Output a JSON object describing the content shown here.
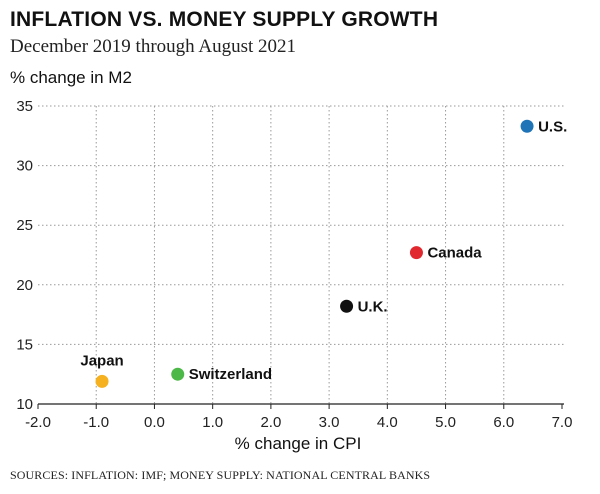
{
  "chart_data": {
    "type": "scatter",
    "title": "INFLATION VS. MONEY SUPPLY GROWTH",
    "subtitle": "December 2019 through August 2021",
    "ylabel": "% change in M2",
    "xlabel": "% change in CPI",
    "source": "SOURCES: INFLATION: IMF; MONEY SUPPLY: NATIONAL CENTRAL BANKS",
    "xlim": [
      -2.0,
      7.0
    ],
    "ylim": [
      10,
      35
    ],
    "x_ticks": [
      "-2.0",
      "-1.0",
      "0.0",
      "1.0",
      "2.0",
      "3.0",
      "4.0",
      "5.0",
      "6.0",
      "7.0"
    ],
    "x_tick_values": [
      -2,
      -1,
      0,
      1,
      2,
      3,
      4,
      5,
      6,
      7
    ],
    "y_ticks": [
      "35",
      "30",
      "25",
      "20",
      "15",
      "10"
    ],
    "y_tick_values": [
      35,
      30,
      25,
      20,
      15,
      10
    ],
    "grid": true,
    "points": [
      {
        "name": "U.S.",
        "x": 6.4,
        "y": 33.3,
        "color": "#1f73b7",
        "label_pos": "right"
      },
      {
        "name": "Canada",
        "x": 4.5,
        "y": 22.7,
        "color": "#e0282e",
        "label_pos": "right"
      },
      {
        "name": "U.K.",
        "x": 3.3,
        "y": 18.2,
        "color": "#111111",
        "label_pos": "right"
      },
      {
        "name": "Switzerland",
        "x": 0.4,
        "y": 12.5,
        "color": "#4cb848",
        "label_pos": "right"
      },
      {
        "name": "Japan",
        "x": -0.9,
        "y": 11.9,
        "color": "#f5b11f",
        "label_pos": "above"
      }
    ]
  }
}
